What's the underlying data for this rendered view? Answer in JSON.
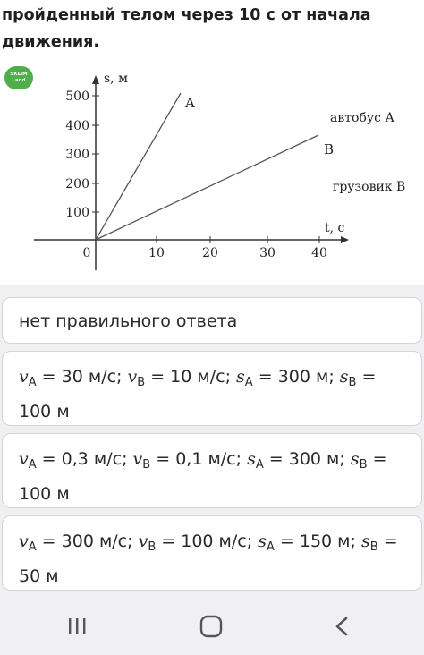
{
  "question": {
    "text": "пройденный телом через 10 с от начала движения."
  },
  "logo": {
    "line1": "SKLIM",
    "line2": "Land"
  },
  "graph": {
    "y_axis_label": "s, м",
    "x_axis_label": "t, с",
    "y_ticks": [
      "100",
      "200",
      "300",
      "400",
      "500"
    ],
    "x_ticks": [
      "0",
      "10",
      "20",
      "30",
      "40"
    ],
    "line_a_label": "A",
    "line_b_label": "B",
    "legend_a": "автобус А",
    "legend_b": "грузовик В"
  },
  "options": [
    {
      "text": "нет правильного ответа"
    },
    {
      "vA": "30 м/с",
      "vB": "10 м/с",
      "sA": "300 м",
      "sB_num": "100",
      "sB_unit": "м"
    },
    {
      "vA": "0,3 м/с",
      "vB": "0,1 м/с",
      "sA": "300 м",
      "sB_num": "100",
      "sB_unit": "м"
    },
    {
      "vA": "300 м/с",
      "vB": "100 м/с",
      "sA": "150 м",
      "sB_num": "50",
      "sB_unit": "м"
    }
  ],
  "navbar": {
    "icons": [
      "recent-apps-icon",
      "home-icon",
      "back-icon"
    ]
  }
}
